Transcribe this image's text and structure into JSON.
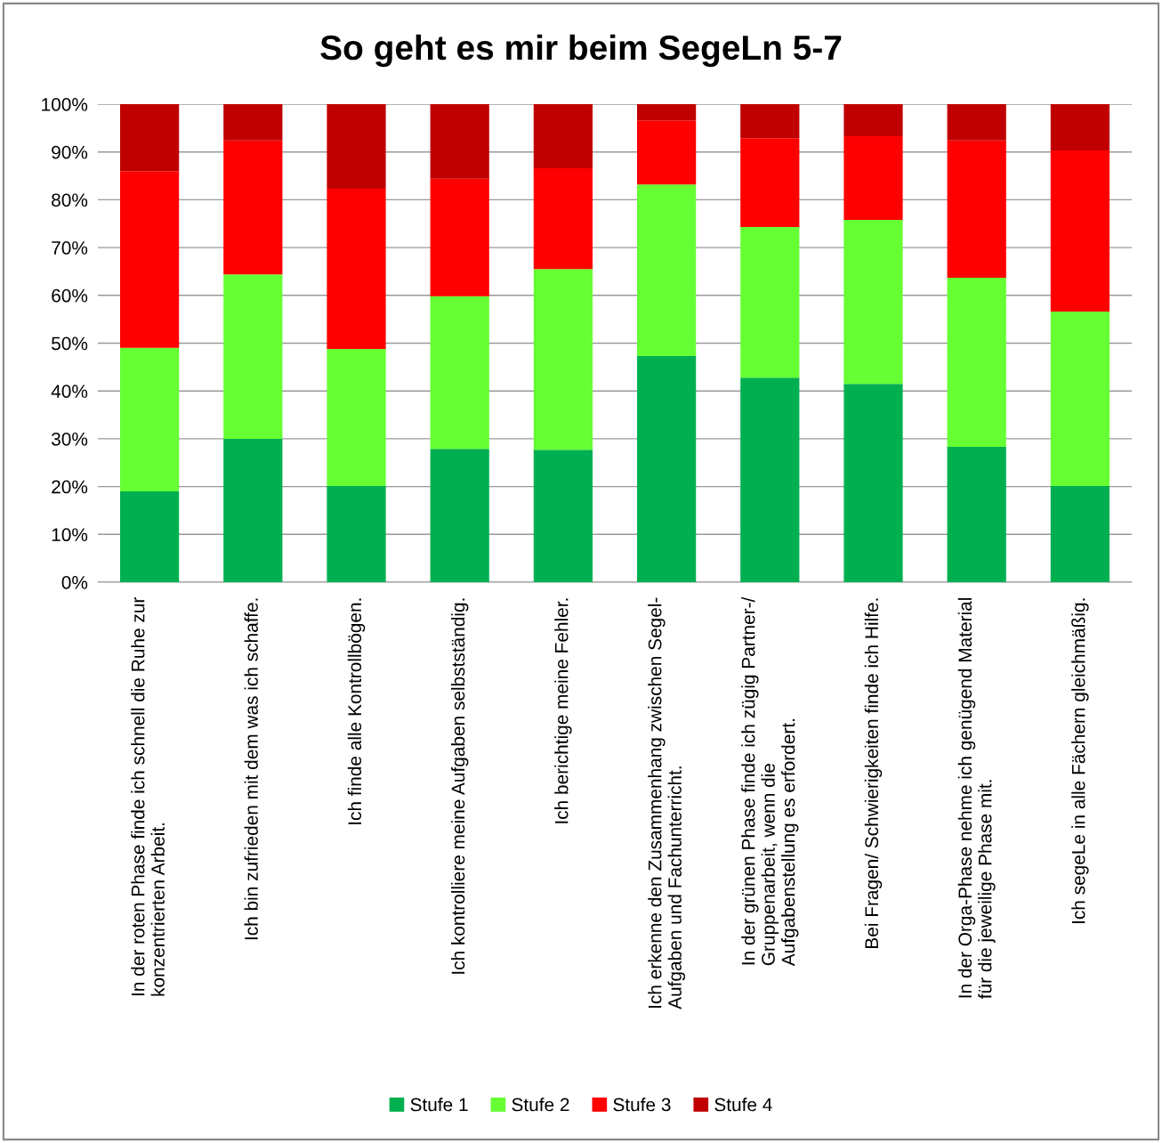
{
  "chart_data": {
    "type": "bar",
    "title": "So geht es mir beim SegeLn 5-7",
    "stacked": true,
    "categories": [
      "In der roten Phase finde ich schnell die Ruhe zur\nkonzentrierten Arbeit.",
      "Ich bin zufrieden mit dem was ich schaffe.",
      "Ich finde alle Kontrollbögen.",
      "Ich kontrolliere meine Aufgaben selbstständig.",
      "Ich berichtige meine Fehler.",
      "Ich erkenne den Zusammenhang zwischen Segel-\nAufgaben und Fachunterricht.",
      "In der grünen Phase finde ich zügig Partner-/\nGruppenarbeit, wenn die\nAufgabenstellung es erfordert.",
      "Bei Fragen/ Schwierigkeiten finde ich Hilfe.",
      "In der Orga-Phase nehme ich genügend Material\nfür die jeweilige Phase mit.",
      "Ich segeLe in alle Fächern gleichmäßig."
    ],
    "series": [
      {
        "name": "Stufe 1",
        "color": "#00b050",
        "values": [
          19.0,
          30.0,
          20.1,
          27.9,
          27.7,
          47.3,
          42.8,
          41.5,
          28.3,
          20.1
        ]
      },
      {
        "name": "Stufe 2",
        "color": "#66ff33",
        "values": [
          30.0,
          34.4,
          28.7,
          31.9,
          37.8,
          35.9,
          31.5,
          34.3,
          35.4,
          36.5
        ]
      },
      {
        "name": "Stufe 3",
        "color": "#ff0000",
        "values": [
          37.0,
          28.0,
          33.5,
          24.6,
          21.1,
          13.4,
          18.6,
          17.5,
          28.7,
          33.7
        ]
      },
      {
        "name": "Stufe 4",
        "color": "#c00000",
        "values": [
          14.0,
          7.6,
          17.7,
          15.6,
          13.4,
          3.4,
          7.1,
          6.7,
          7.6,
          9.7
        ]
      }
    ],
    "ylim": [
      0,
      100
    ],
    "yticks": [
      {
        "value": 0,
        "label": "0%"
      },
      {
        "value": 10,
        "label": "10%"
      },
      {
        "value": 20,
        "label": "20%"
      },
      {
        "value": 30,
        "label": "30%"
      },
      {
        "value": 40,
        "label": "40%"
      },
      {
        "value": 50,
        "label": "50%"
      },
      {
        "value": 60,
        "label": "60%"
      },
      {
        "value": 70,
        "label": "70%"
      },
      {
        "value": 80,
        "label": "80%"
      },
      {
        "value": 90,
        "label": "90%"
      },
      {
        "value": 100,
        "label": "100%"
      }
    ],
    "grid": "y",
    "legend": "bottom"
  }
}
